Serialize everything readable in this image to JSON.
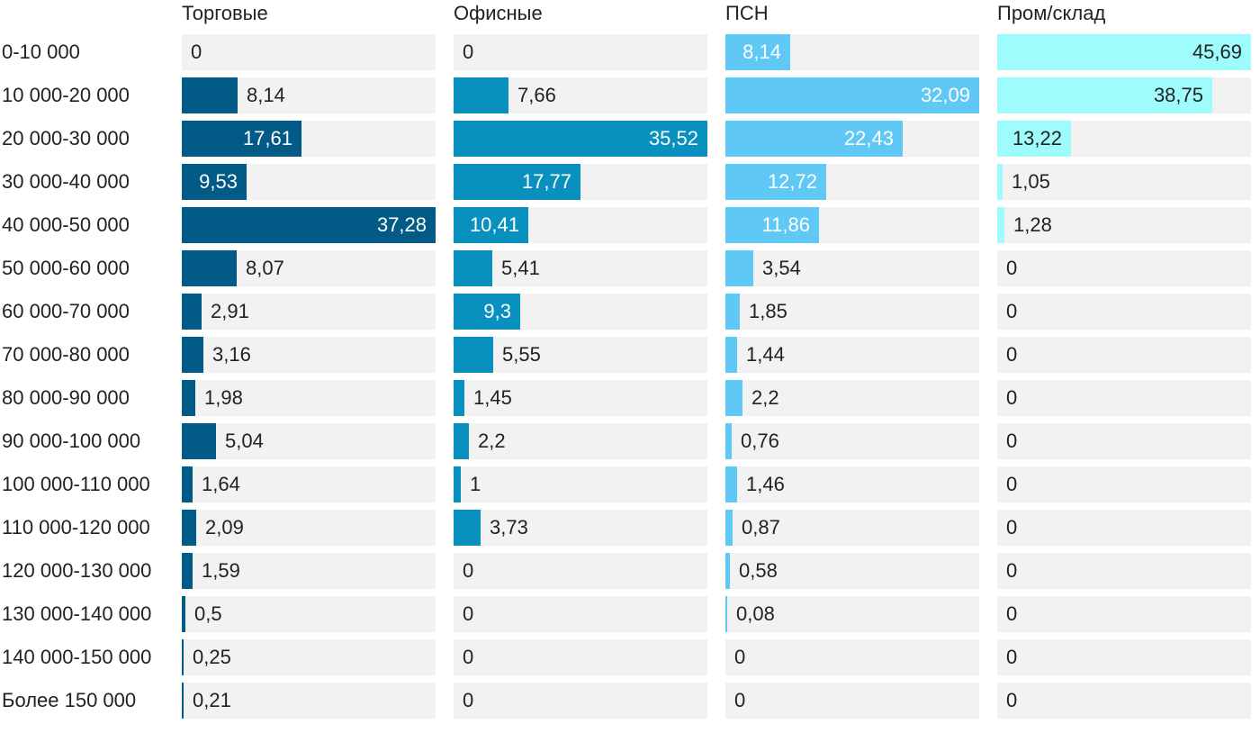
{
  "chart_data": {
    "type": "bar",
    "orientation": "horizontal",
    "layout": "small-multiples",
    "categories": [
      "0-10 000",
      "10 000-20 000",
      "20 000-30 000",
      "30 000-40 000",
      "40 000-50 000",
      "50 000-60 000",
      "60 000-70 000",
      "70 000-80 000",
      "80 000-90 000",
      "90 000-100 000",
      "100 000-110 000",
      "110 000-120 000",
      "120 000-130 000",
      "130 000-140 000",
      "140 000-150 000",
      "Более 150 000"
    ],
    "series": [
      {
        "name": "Торговые",
        "color": "#025a87",
        "values": [
          0,
          8.14,
          17.61,
          9.53,
          37.28,
          8.07,
          2.91,
          3.16,
          1.98,
          5.04,
          1.64,
          2.09,
          1.59,
          0.5,
          0.25,
          0.21
        ],
        "labels": [
          "0",
          "8,14",
          "17,61",
          "9,53",
          "37,28",
          "8,07",
          "2,91",
          "3,16",
          "1,98",
          "5,04",
          "1,64",
          "2,09",
          "1,59",
          "0,5",
          "0,25",
          "0,21"
        ]
      },
      {
        "name": "Офисные",
        "color": "#0891bf",
        "values": [
          0,
          7.66,
          35.52,
          17.77,
          10.41,
          5.41,
          9.3,
          5.55,
          1.45,
          2.2,
          1,
          3.73,
          0,
          0,
          0,
          0
        ],
        "labels": [
          "0",
          "7,66",
          "35,52",
          "17,77",
          "10,41",
          "5,41",
          "9,3",
          "5,55",
          "1,45",
          "2,2",
          "1",
          "3,73",
          "0",
          "0",
          "0",
          "0"
        ]
      },
      {
        "name": "ПСН",
        "color": "#5fc8f5",
        "values": [
          8.14,
          32.09,
          22.43,
          12.72,
          11.86,
          3.54,
          1.85,
          1.44,
          2.2,
          0.76,
          1.46,
          0.87,
          0.58,
          0.08,
          0,
          0
        ],
        "labels": [
          "8,14",
          "32,09",
          "22,43",
          "12,72",
          "11,86",
          "3,54",
          "1,85",
          "1,44",
          "2,2",
          "0,76",
          "1,46",
          "0,87",
          "0,58",
          "0,08",
          "0",
          "0"
        ]
      },
      {
        "name": "Пром/склад",
        "color": "#9ffcfd",
        "values": [
          45.69,
          38.75,
          13.22,
          1.05,
          1.28,
          0,
          0,
          0,
          0,
          0,
          0,
          0,
          0,
          0,
          0,
          0
        ],
        "labels": [
          "45,69",
          "38,75",
          "13,22",
          "1,05",
          "1,28",
          "0",
          "0",
          "0",
          "0",
          "0",
          "0",
          "0",
          "0",
          "0",
          "0",
          "0"
        ]
      }
    ]
  }
}
